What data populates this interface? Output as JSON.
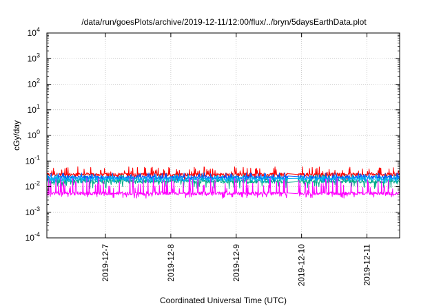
{
  "chart_data": {
    "type": "line",
    "title": "/data/run/goesPlots/archive/2019-12-11/12:00/flux/../bryn/5daysEarthData.plot",
    "xlabel": "Coordinated Universal Time (UTC)",
    "ylabel": "cGy/day",
    "yscale": "log",
    "ylim": [
      0.0001,
      10000
    ],
    "xlim": [
      "2019-12-06T02:30",
      "2019-12-11T12:00"
    ],
    "y_ticks": [
      {
        "base": "10",
        "exp": "4",
        "value": 10000
      },
      {
        "base": "10",
        "exp": "3",
        "value": 1000
      },
      {
        "base": "10",
        "exp": "2",
        "value": 100
      },
      {
        "base": "10",
        "exp": "1",
        "value": 10
      },
      {
        "base": "10",
        "exp": "0",
        "value": 1
      },
      {
        "base": "10",
        "exp": "-1",
        "value": 0.1
      },
      {
        "base": "10",
        "exp": "-2",
        "value": 0.01
      },
      {
        "base": "10",
        "exp": "-3",
        "value": 0.001
      },
      {
        "base": "10",
        "exp": "-4",
        "value": 0.0001
      }
    ],
    "x_ticks": [
      "2019-12-7",
      "2019-12-8",
      "2019-12-9",
      "2019-12-10",
      "2019-12-11"
    ],
    "grid": true,
    "data_gap": [
      "2019-12-09T19:00",
      "2019-12-09T22:30"
    ],
    "series": [
      {
        "color": "#ff0000",
        "base": 0.03,
        "spike": 0.06,
        "dip": 0.018
      },
      {
        "color": "#00aa88",
        "base": 0.016,
        "spike": 0.03,
        "dip": 0.008
      },
      {
        "color": "#0055ff",
        "base": 0.023,
        "spike": 0.035,
        "dip": 0.016
      },
      {
        "color": "#00b0f0",
        "base": 0.02,
        "spike": 0.03,
        "dip": 0.014
      },
      {
        "color": "#ff00ff",
        "base": 0.0055,
        "spike": 0.022,
        "dip": 0.0035
      }
    ]
  }
}
